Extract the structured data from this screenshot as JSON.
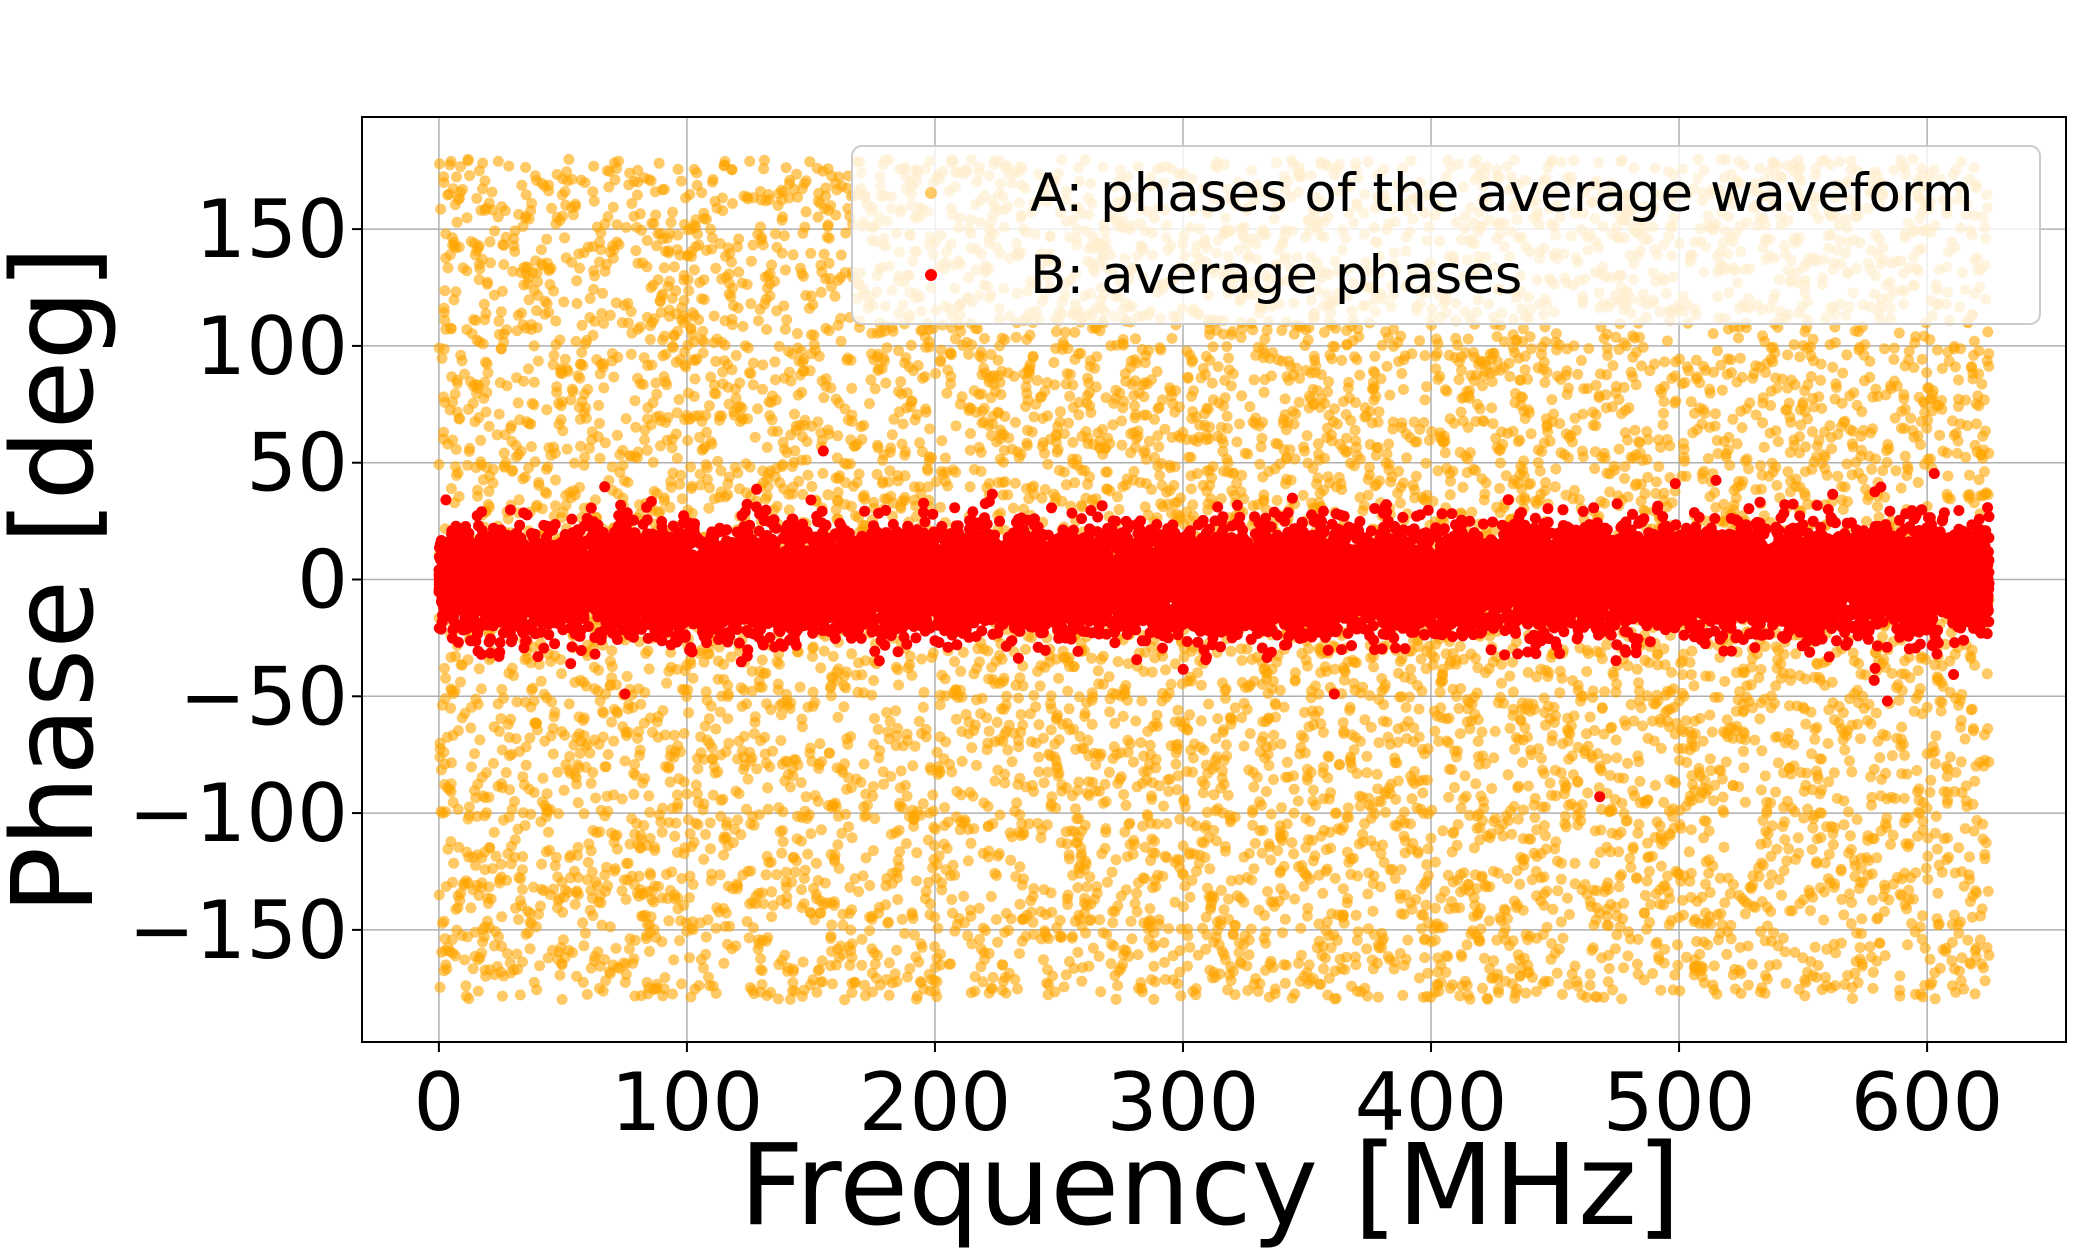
{
  "chart_data": {
    "type": "scatter",
    "title": "",
    "xlabel": "Frequency [MHz]",
    "ylabel": "Phase [deg]",
    "xlim": [
      -31,
      656
    ],
    "ylim": [
      -198,
      198
    ],
    "x_ticks": [
      0,
      100,
      200,
      300,
      400,
      500,
      600
    ],
    "y_ticks": [
      150,
      100,
      50,
      0,
      -50,
      -100,
      -150
    ],
    "x_tick_labels": [
      "0",
      "100",
      "200",
      "300",
      "400",
      "500",
      "600"
    ],
    "y_tick_labels": [
      "150",
      "100",
      "50",
      "0",
      "−50",
      "−100",
      "−150"
    ],
    "grid": true,
    "legend_placement": "upper right",
    "series": [
      {
        "name": "A: phases of the average waveform",
        "color": "#ffa500",
        "alpha": 0.6,
        "x_range": [
          0,
          625
        ],
        "distribution": "uniform",
        "phase_range": [
          -180,
          180
        ],
        "n_points": 9000
      },
      {
        "name": "B: average phases",
        "color": "#ff0000",
        "alpha": 1.0,
        "x_range": [
          0,
          625
        ],
        "distribution": "gaussian",
        "phase_center": 0,
        "phase_std": 11,
        "phase_range": [
          -50,
          55
        ],
        "n_points": 14000,
        "outliers": [
          [
            155,
            55
          ],
          [
            468,
            -93
          ],
          [
            361,
            -49
          ],
          [
            75,
            -49
          ],
          [
            584,
            -52
          ]
        ]
      }
    ]
  }
}
